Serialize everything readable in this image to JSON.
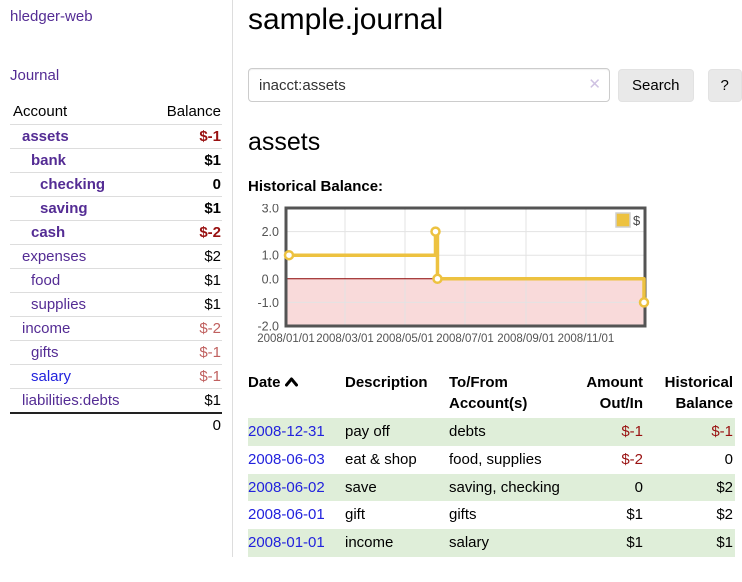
{
  "app": {
    "brand": "hledger-web",
    "nav_journal": "Journal"
  },
  "sidebar": {
    "header": {
      "account": "Account",
      "balance": "Balance"
    },
    "accounts": [
      {
        "name": "assets",
        "depth": 1,
        "bold": true,
        "balance": "$-1",
        "balance_class": "bal-strong-neg"
      },
      {
        "name": "bank",
        "depth": 2,
        "bold": true,
        "balance": "$1",
        "balance_class": "bal-pos"
      },
      {
        "name": "checking",
        "depth": 3,
        "bold": true,
        "balance": "0",
        "balance_class": "bal-pos"
      },
      {
        "name": "saving",
        "depth": 3,
        "bold": true,
        "balance": "$1",
        "balance_class": "bal-pos"
      },
      {
        "name": "cash",
        "depth": 2,
        "bold": true,
        "balance": "$-2",
        "balance_class": "bal-strong-neg"
      },
      {
        "name": "expenses",
        "depth": 1,
        "bold": false,
        "balance": "$2",
        "balance_class": "bal-pos"
      },
      {
        "name": "food",
        "depth": 2,
        "bold": false,
        "balance": "$1",
        "balance_class": "bal-pos"
      },
      {
        "name": "supplies",
        "depth": 2,
        "bold": false,
        "balance": "$1",
        "balance_class": "bal-pos"
      },
      {
        "name": "income",
        "depth": 1,
        "bold": false,
        "balance": "$-2",
        "balance_class": "bal-weak-neg"
      },
      {
        "name": "gifts",
        "depth": 2,
        "bold": false,
        "balance": "$-1",
        "balance_class": "bal-weak-neg"
      },
      {
        "name": "salary",
        "depth": 2,
        "bold": false,
        "blue": true,
        "balance": "$-1",
        "balance_class": "bal-weak-neg"
      },
      {
        "name": "liabilities:debts",
        "depth": 1,
        "bold": false,
        "balance": "$1",
        "balance_class": "bal-pos"
      }
    ],
    "total": "0"
  },
  "main": {
    "title": "sample.journal",
    "search": {
      "query": "inacct:assets",
      "clear_icon": "✕",
      "button": "Search",
      "help_button": "?"
    },
    "account_heading": "assets",
    "chart_label": "Historical Balance:"
  },
  "chart_data": {
    "type": "line",
    "step": true,
    "title": "Historical Balance",
    "series": [
      {
        "name": "$",
        "color": "#edc240",
        "points": [
          [
            "2008-01-01",
            1
          ],
          [
            "2008-06-01",
            2
          ],
          [
            "2008-06-02",
            2
          ],
          [
            "2008-06-03",
            0
          ],
          [
            "2008-12-31",
            -1
          ]
        ]
      }
    ],
    "ylim": [
      -2,
      3
    ],
    "yticks": [
      {
        "v": 3,
        "label": "3.0"
      },
      {
        "v": 2,
        "label": "2.0"
      },
      {
        "v": 1,
        "label": "1.0"
      },
      {
        "v": 0,
        "label": "0.0"
      },
      {
        "v": -1,
        "label": "-1.0"
      },
      {
        "v": -2,
        "label": "-2.0"
      }
    ],
    "xrange": [
      "2008-01-01",
      "2008-12-31"
    ],
    "xticks": [
      {
        "date": "2008-01-01",
        "label": "2008/01/01"
      },
      {
        "date": "2008-03-01",
        "label": "2008/03/01"
      },
      {
        "date": "2008-05-01",
        "label": "2008/05/01"
      },
      {
        "date": "2008-07-01",
        "label": "2008/07/01"
      },
      {
        "date": "2008-09-01",
        "label": "2008/09/01"
      },
      {
        "date": "2008-11-01",
        "label": "2008/11/01"
      }
    ],
    "legend_position": "top-right",
    "grid": true,
    "zero_line_color": "#8b0000",
    "negative_region_fill": "#f9dada",
    "border_color": "#545454"
  },
  "register": {
    "headers": {
      "date": "Date",
      "description": "Description",
      "accounts": "To/From Account(s)",
      "amount": "Amount Out/In",
      "balance": "Historical Balance"
    },
    "rows": [
      {
        "date": "2008-12-31",
        "description": "pay off",
        "accounts": "debts",
        "amount": "$-1",
        "amount_neg": true,
        "balance": "$-1",
        "balance_neg": true
      },
      {
        "date": "2008-06-03",
        "description": "eat & shop",
        "accounts": "food, supplies",
        "amount": "$-2",
        "amount_neg": true,
        "balance": "0",
        "balance_neg": false
      },
      {
        "date": "2008-06-02",
        "description": "save",
        "accounts": "saving, checking",
        "amount": "0",
        "amount_neg": false,
        "balance": "$2",
        "balance_neg": false
      },
      {
        "date": "2008-06-01",
        "description": "gift",
        "accounts": "gifts",
        "amount": "$1",
        "amount_neg": false,
        "balance": "$2",
        "balance_neg": false
      },
      {
        "date": "2008-01-01",
        "description": "income",
        "accounts": "salary",
        "amount": "$1",
        "amount_neg": false,
        "balance": "$1",
        "balance_neg": false
      }
    ]
  }
}
